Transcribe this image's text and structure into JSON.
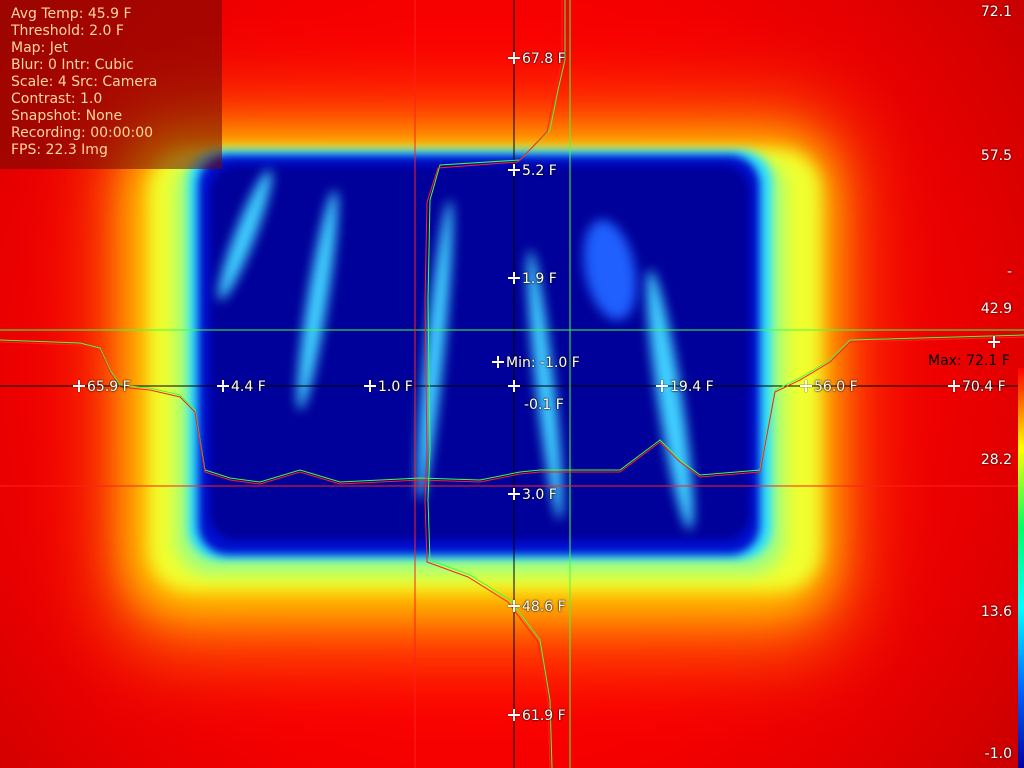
{
  "info": {
    "avg_temp": "Avg Temp: 45.9 F",
    "threshold": "Threshold: 2.0 F",
    "map": "Map: Jet",
    "blur": "Blur: 0  Intr: Cubic",
    "scale": "Scale: 4  Src: Camera",
    "contrast": "Contrast: 1.0",
    "snapshot": "Snapshot: None",
    "recording": "Recording: 00:00:00",
    "fps": "FPS: 22.3  Img"
  },
  "scale_labels": [
    "72.1",
    "57.5",
    "-",
    "42.9",
    "28.2",
    "13.6",
    "-1.0"
  ],
  "max_label": "Max: 72.1 F",
  "min_label": "Min: -1.0 F",
  "horizontal_readings": [
    "65.9 F",
    "4.4 F",
    "1.0 F",
    "19.4 F",
    "56.0 F",
    "70.4 F"
  ],
  "center_reading": "-0.1 F",
  "vertical_readings": [
    "67.8 F",
    "5.2 F",
    "1.9 F",
    "3.0 F",
    "48.6 F",
    "61.9 F"
  ],
  "colors": {
    "hot": "#ff0000",
    "warm": "#ffff00",
    "cool": "#00ffff",
    "cold": "#0000b4",
    "crosshair_red": "#ff2020",
    "crosshair_green": "#40ff40"
  }
}
